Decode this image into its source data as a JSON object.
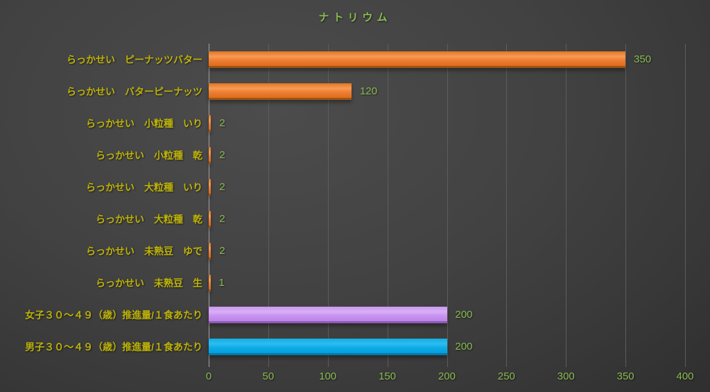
{
  "title": "ナトリウム",
  "colors": {
    "title_text": "#8ABB50",
    "value_label_text": "#8ABB50",
    "axis_tick_text": "#8ABB50",
    "category_label_text": "#BDB309",
    "gridline": "#5d5d5d",
    "axis_line": "#a3a3a3"
  },
  "bar_styles": {
    "orange": {
      "top": "#e27420",
      "mid": "#f79b55",
      "base": "#ed7d31",
      "bottom": "#dc6e1b",
      "edge": "#9e5214"
    },
    "purple": {
      "top": "#c997ef",
      "mid": "#d9aff7",
      "base": "#c893f0",
      "bottom": "#bd82e8",
      "edge": "#8a5bb4"
    },
    "blue": {
      "top": "#14addf",
      "mid": "#2cbdf2",
      "base": "#0fabe6",
      "bottom": "#00a0dc",
      "edge": "#0779a8"
    }
  },
  "chart_data": {
    "type": "bar",
    "orientation": "horizontal",
    "title": "ナトリウム",
    "categories": [
      "らっかせい　ピーナッツバター",
      "らっかせい　バターピーナッツ",
      "らっかせい　小粒種　いり",
      "らっかせい　小粒種　乾",
      "らっかせい　大粒種　いり",
      "らっかせい　大粒種　乾",
      "らっかせい　未熟豆　ゆで",
      "らっかせい　未熟豆　生",
      "女子３０～４９（歳）推進量/１食あたり",
      "男子３０～４９（歳）推進量/１食あたり"
    ],
    "values": [
      350,
      120,
      2,
      2,
      2,
      2,
      2,
      1,
      200,
      200
    ],
    "value_labels": [
      "350",
      "120",
      "2",
      "2",
      "2",
      "2",
      "2",
      "1",
      "200",
      "200"
    ],
    "bar_color_keys": [
      "orange",
      "orange",
      "orange",
      "orange",
      "orange",
      "orange",
      "orange",
      "orange",
      "purple",
      "blue"
    ],
    "xlabel": "",
    "ylabel": "",
    "xlim": [
      0,
      400
    ],
    "xticks": [
      0,
      50,
      100,
      150,
      200,
      250,
      300,
      350,
      400
    ],
    "grid": true,
    "legend": null
  }
}
